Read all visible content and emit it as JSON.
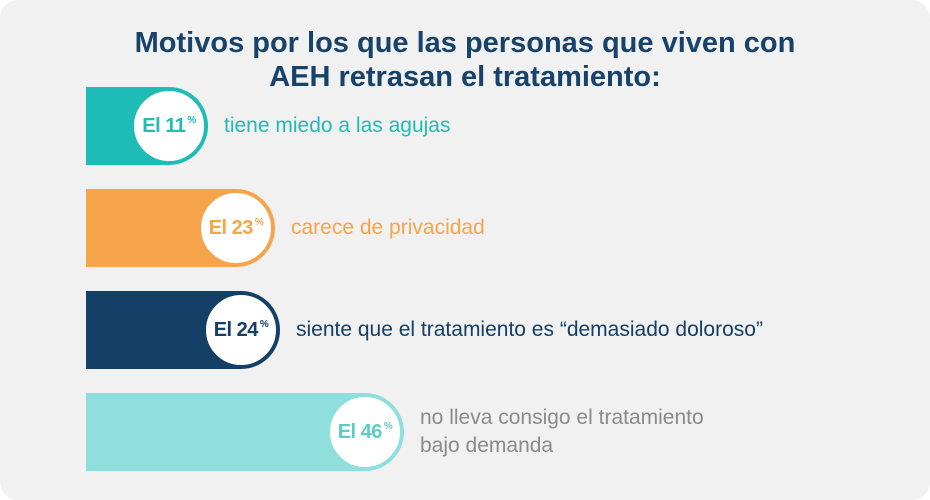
{
  "title_lines": [
    "Motivos por los que las personas que viven con",
    "AEH retrasan el tratamiento:"
  ],
  "chart_data": {
    "type": "bar",
    "title": "Motivos por los que las personas que viven con AEH retrasan el tratamiento:",
    "categories": [
      "tiene miedo a las agujas",
      "carece de privacidad",
      "siente que el tratamiento es “demasiado doloroso”",
      "no lleva consigo el tratamiento\nbajo demanda"
    ],
    "values": [
      11,
      23,
      24,
      46
    ],
    "value_prefix": "El",
    "unit": "%",
    "colors": [
      "#1fbcb7",
      "#f6a44a",
      "#143f66",
      "#8edfdd"
    ],
    "label_colors": [
      "#1fbcb7",
      "#f6a44a",
      "#143f66",
      "#8a8a8a"
    ],
    "badge_text_colors": [
      "#1fbcb7",
      "#f6a44a",
      "#143f66",
      "#5ccbc6"
    ]
  }
}
